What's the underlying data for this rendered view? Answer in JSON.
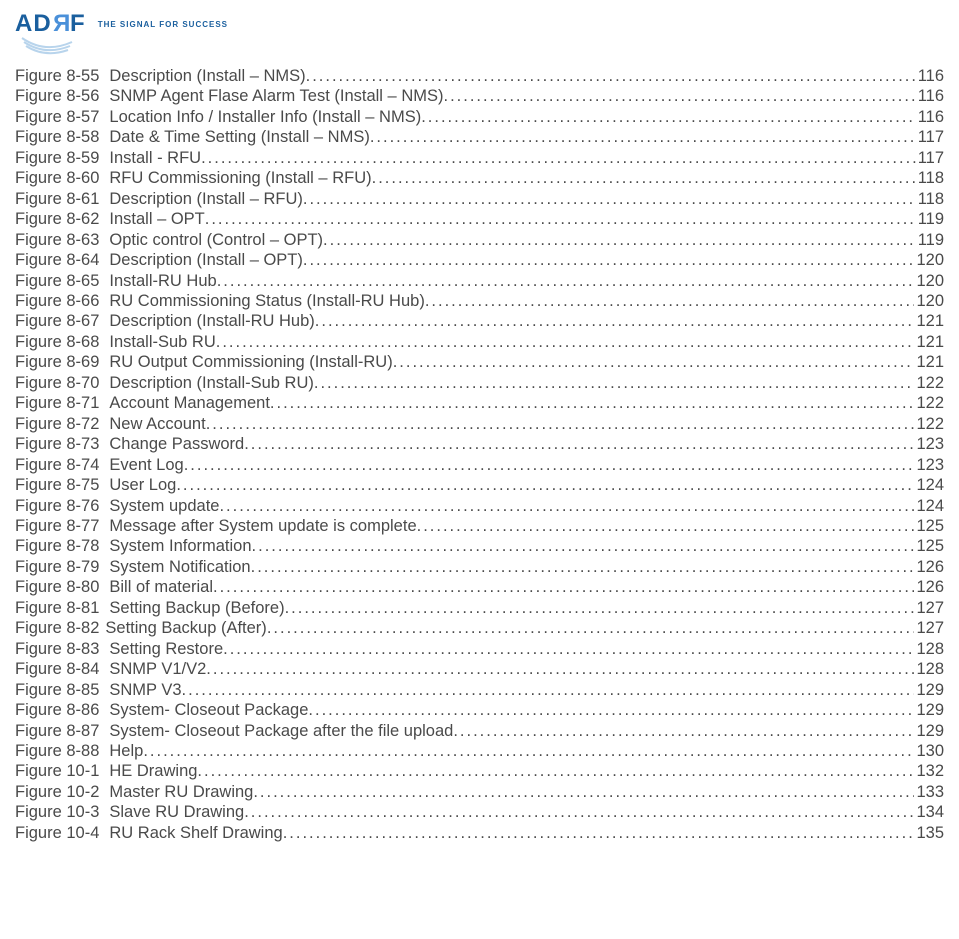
{
  "header": {
    "logo_a": "A",
    "logo_d": "D",
    "logo_r": "R",
    "logo_f": "F",
    "tagline": "THE SIGNAL FOR SUCCESS"
  },
  "entries": [
    {
      "figref": "Figure 8-55",
      "title": "Description (Install – NMS)",
      "page": "116"
    },
    {
      "figref": "Figure 8-56",
      "title": "SNMP Agent Flase Alarm Test (Install – NMS) ",
      "page": "116"
    },
    {
      "figref": "Figure 8-57",
      "title": "Location Info / Installer Info (Install – NMS) ",
      "page": "116"
    },
    {
      "figref": "Figure 8-58",
      "title": "Date & Time Setting (Install – NMS) ",
      "page": "117"
    },
    {
      "figref": "Figure 8-59",
      "title": "Install - RFU ",
      "page": "117"
    },
    {
      "figref": "Figure 8-60",
      "title": "RFU Commissioning (Install – RFU) ",
      "page": "118"
    },
    {
      "figref": "Figure 8-61",
      "title": "Description (Install – RFU) ",
      "page": "118"
    },
    {
      "figref": "Figure 8-62",
      "title": "Install – OPT",
      "page": "119"
    },
    {
      "figref": "Figure 8-63",
      "title": "Optic control (Control – OPT)",
      "page": "119"
    },
    {
      "figref": "Figure 8-64",
      "title": "Description (Install – OPT) ",
      "page": "120"
    },
    {
      "figref": "Figure 8-65",
      "title": "Install-RU Hub ",
      "page": "120"
    },
    {
      "figref": "Figure 8-66",
      "title": "RU Commissioning Status (Install-RU Hub) ",
      "page": "120"
    },
    {
      "figref": "Figure 8-67",
      "title": "Description (Install-RU Hub) ",
      "page": "121"
    },
    {
      "figref": "Figure 8-68",
      "title": "Install-Sub RU ",
      "page": "121"
    },
    {
      "figref": "Figure 8-69",
      "title": "RU Output Commissioning (Install-RU) ",
      "page": "121"
    },
    {
      "figref": "Figure 8-70",
      "title": "Description (Install-Sub RU)",
      "page": "122"
    },
    {
      "figref": "Figure 8-71",
      "title": "Account Management ",
      "page": "122"
    },
    {
      "figref": "Figure 8-72",
      "title": "New Account ",
      "page": "122"
    },
    {
      "figref": "Figure 8-73",
      "title": "Change Password ",
      "page": "123"
    },
    {
      "figref": "Figure 8-74",
      "title": "Event Log ",
      "page": "123"
    },
    {
      "figref": "Figure 8-75",
      "title": "User Log ",
      "page": "124"
    },
    {
      "figref": "Figure 8-76",
      "title": "System update ",
      "page": "124"
    },
    {
      "figref": "Figure 8-77",
      "title": "Message after System update is complete ",
      "page": "125"
    },
    {
      "figref": "Figure 8-78",
      "title": "System Information ",
      "page": "125"
    },
    {
      "figref": "Figure 8-79",
      "title": "System Notification",
      "page": "126"
    },
    {
      "figref": "Figure 8-80",
      "title": "Bill of material ",
      "page": "126"
    },
    {
      "figref": "Figure 8-81",
      "title": "Setting Backup (Before) ",
      "page": "127"
    },
    {
      "figref": "Figure 8-82  ",
      "title": "Setting Backup (After) ",
      "page": "127",
      "indent": "less"
    },
    {
      "figref": "Figure 8-83",
      "title": "Setting Restore",
      "page": "128"
    },
    {
      "figref": "Figure 8-84",
      "title": "SNMP V1/V2 ",
      "page": "128"
    },
    {
      "figref": "Figure 8-85",
      "title": "SNMP V3",
      "page": "129"
    },
    {
      "figref": "Figure 8-86",
      "title": "System- Closeout Package ",
      "page": "129"
    },
    {
      "figref": "Figure 8-87",
      "title": "System- Closeout Package after the file upload ",
      "page": "129"
    },
    {
      "figref": "Figure 8-88",
      "title": "Help ",
      "page": "130"
    },
    {
      "figref": "Figure 10-1",
      "title": "HE Drawing ",
      "page": "132"
    },
    {
      "figref": "Figure 10-2",
      "title": "Master RU Drawing ",
      "page": "133"
    },
    {
      "figref": "Figure 10-3",
      "title": "Slave RU Drawing ",
      "page": "134"
    },
    {
      "figref": "Figure 10-4",
      "title": "RU Rack Shelf Drawing",
      "page": "135"
    }
  ]
}
